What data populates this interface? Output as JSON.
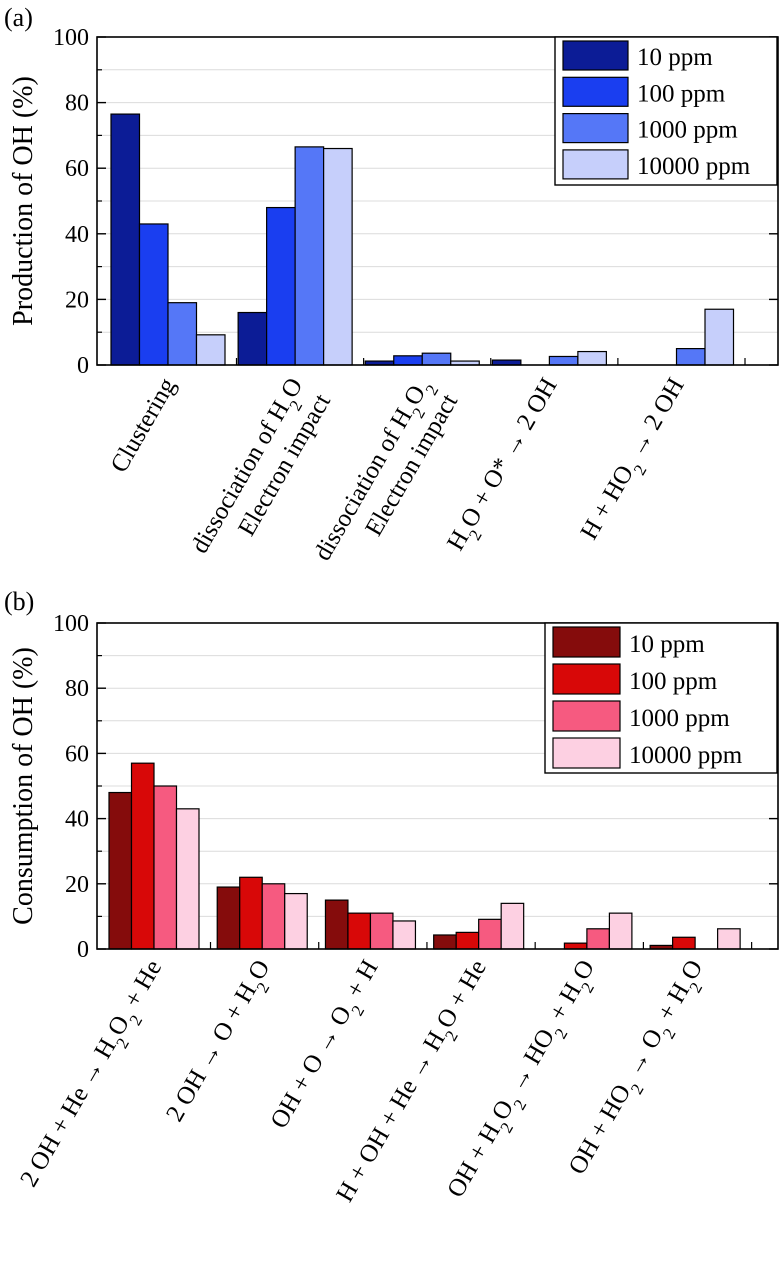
{
  "chart_data": [
    {
      "type": "bar",
      "panel_label": "(a)",
      "title": "",
      "xlabel": "",
      "ylabel": "Production of OH (%)",
      "ylim": [
        0,
        100
      ],
      "yticks": [
        "0",
        "20",
        "40",
        "60",
        "80",
        "100"
      ],
      "categories": [
        {
          "lines": [
            [
              {
                "t": "Clustering"
              }
            ]
          ]
        },
        {
          "lines": [
            [
              {
                "t": "Electron impact"
              }
            ],
            [
              {
                "t": "dissociation of H"
              },
              {
                "t": "2",
                "sub": true
              },
              {
                "t": "O"
              }
            ]
          ]
        },
        {
          "lines": [
            [
              {
                "t": "Electron impact"
              }
            ],
            [
              {
                "t": "dissociation of H"
              },
              {
                "t": "2",
                "sub": true
              },
              {
                "t": "O"
              },
              {
                "t": "2",
                "sub": true
              }
            ]
          ]
        },
        {
          "lines": [
            [
              {
                "t": "H"
              },
              {
                "t": "2",
                "sub": true
              },
              {
                "t": "O + O* → 2 OH"
              }
            ]
          ]
        },
        {
          "lines": [
            [
              {
                "t": "H + HO"
              },
              {
                "t": "2",
                "sub": true
              },
              {
                "t": " → 2 OH"
              }
            ]
          ]
        }
      ],
      "series": [
        {
          "name": "10 ppm",
          "color": "#0c1c96",
          "values": [
            76.5,
            16,
            1.2,
            1.5,
            0
          ]
        },
        {
          "name": "100 ppm",
          "color": "#1a3ef0",
          "values": [
            43,
            48,
            2.8,
            0,
            0
          ]
        },
        {
          "name": "1000 ppm",
          "color": "#5577f7",
          "values": [
            19,
            66.5,
            3.6,
            2.6,
            5
          ]
        },
        {
          "name": "10000 ppm",
          "color": "#c6cffb",
          "values": [
            9.2,
            66,
            1.2,
            4.1,
            17
          ]
        }
      ],
      "legend": "top-right",
      "grid": true
    },
    {
      "type": "bar",
      "panel_label": "(b)",
      "title": "",
      "xlabel": "",
      "ylabel": "Consumption of OH (%)",
      "ylim": [
        0,
        100
      ],
      "yticks": [
        "0",
        "20",
        "40",
        "60",
        "80",
        "100"
      ],
      "categories": [
        {
          "lines": [
            [
              {
                "t": "2 OH + He → H"
              },
              {
                "t": "2",
                "sub": true
              },
              {
                "t": "O"
              },
              {
                "t": "2",
                "sub": true
              },
              {
                "t": " + He"
              }
            ]
          ]
        },
        {
          "lines": [
            [
              {
                "t": "2 OH → O + H"
              },
              {
                "t": "2",
                "sub": true
              },
              {
                "t": "O"
              }
            ]
          ]
        },
        {
          "lines": [
            [
              {
                "t": "OH + O → O"
              },
              {
                "t": "2",
                "sub": true
              },
              {
                "t": " + H"
              }
            ]
          ]
        },
        {
          "lines": [
            [
              {
                "t": "H + OH + He → H"
              },
              {
                "t": "2",
                "sub": true
              },
              {
                "t": "O + He"
              }
            ]
          ]
        },
        {
          "lines": [
            [
              {
                "t": "OH + H"
              },
              {
                "t": "2",
                "sub": true
              },
              {
                "t": "O"
              },
              {
                "t": "2",
                "sub": true
              },
              {
                "t": " → HO"
              },
              {
                "t": "2",
                "sub": true
              },
              {
                "t": " + H"
              },
              {
                "t": "2",
                "sub": true
              },
              {
                "t": "O"
              }
            ]
          ]
        },
        {
          "lines": [
            [
              {
                "t": "OH + HO"
              },
              {
                "t": "2",
                "sub": true
              },
              {
                "t": " → O"
              },
              {
                "t": "2",
                "sub": true
              },
              {
                "t": " + H"
              },
              {
                "t": "2",
                "sub": true
              },
              {
                "t": "O"
              }
            ]
          ]
        }
      ],
      "series": [
        {
          "name": "10 ppm",
          "color": "#850c0c",
          "values": [
            48,
            19,
            15,
            4.3,
            0,
            1.1
          ]
        },
        {
          "name": "100 ppm",
          "color": "#d80808",
          "values": [
            57,
            22,
            11,
            5.1,
            1.8,
            3.6
          ]
        },
        {
          "name": "1000 ppm",
          "color": "#f65a80",
          "values": [
            50,
            20,
            11,
            9.1,
            6.2,
            0
          ]
        },
        {
          "name": "10000 ppm",
          "color": "#fdd0e2",
          "values": [
            43,
            17,
            8.6,
            14,
            11,
            6.2
          ]
        }
      ],
      "legend": "top-right",
      "grid": true
    }
  ]
}
